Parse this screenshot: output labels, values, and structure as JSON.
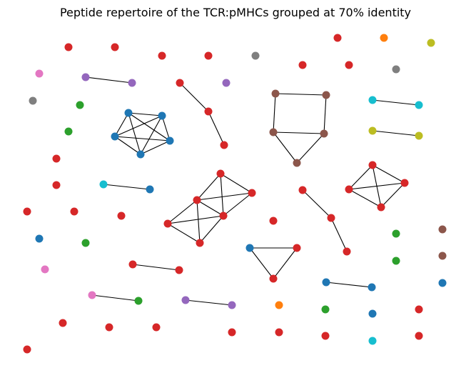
{
  "title": "Peptide repertoire of the TCR:pMHCs grouped at 70% identity",
  "chart_data": {
    "type": "network",
    "title": "Peptide repertoire of the TCR:pMHCs grouped at 70% identity",
    "nodes": [
      {
        "id": "n1",
        "color": "#d62728"
      },
      {
        "id": "n2",
        "color": "#d62728"
      },
      {
        "id": "n3",
        "color": "#d62728"
      },
      {
        "id": "n4",
        "color": "#d62728"
      },
      {
        "id": "n5",
        "color": "#7f7f7f"
      },
      {
        "id": "n6",
        "color": "#d62728"
      },
      {
        "id": "n7",
        "color": "#ff7f0e"
      },
      {
        "id": "n8",
        "color": "#bcbd22"
      },
      {
        "id": "n9",
        "color": "#d62728"
      },
      {
        "id": "n10",
        "color": "#d62728"
      },
      {
        "id": "n11",
        "color": "#7f7f7f"
      },
      {
        "id": "n12",
        "color": "#e377c2"
      },
      {
        "id": "n13",
        "color": "#9467bd"
      },
      {
        "id": "n14",
        "color": "#9467bd"
      },
      {
        "id": "n15",
        "color": "#d62728"
      },
      {
        "id": "n16",
        "color": "#9467bd"
      },
      {
        "id": "n17",
        "color": "#8c564b"
      },
      {
        "id": "n18",
        "color": "#8c564b"
      },
      {
        "id": "n19",
        "color": "#17becf"
      },
      {
        "id": "n20",
        "color": "#17becf"
      },
      {
        "id": "n21",
        "color": "#7f7f7f"
      },
      {
        "id": "n22",
        "color": "#2ca02c"
      },
      {
        "id": "n23",
        "color": "#1f77b4"
      },
      {
        "id": "n24",
        "color": "#1f77b4"
      },
      {
        "id": "n25",
        "color": "#d62728"
      },
      {
        "id": "n26",
        "color": "#2ca02c"
      },
      {
        "id": "n27",
        "color": "#1f77b4"
      },
      {
        "id": "n28",
        "color": "#1f77b4"
      },
      {
        "id": "n29",
        "color": "#1f77b4"
      },
      {
        "id": "n30",
        "color": "#8c564b"
      },
      {
        "id": "n31",
        "color": "#8c564b"
      },
      {
        "id": "n32",
        "color": "#bcbd22"
      },
      {
        "id": "n33",
        "color": "#bcbd22"
      },
      {
        "id": "n34",
        "color": "#d62728"
      },
      {
        "id": "n35",
        "color": "#d62728"
      },
      {
        "id": "n36",
        "color": "#8c564b"
      },
      {
        "id": "n37",
        "color": "#d62728"
      },
      {
        "id": "n38",
        "color": "#d62728"
      },
      {
        "id": "n39",
        "color": "#d62728"
      },
      {
        "id": "n40",
        "color": "#17becf"
      },
      {
        "id": "n41",
        "color": "#1f77b4"
      },
      {
        "id": "n42",
        "color": "#d62728"
      },
      {
        "id": "n43",
        "color": "#d62728"
      },
      {
        "id": "n44",
        "color": "#d62728"
      },
      {
        "id": "n45",
        "color": "#d62728"
      },
      {
        "id": "n46",
        "color": "#d62728"
      },
      {
        "id": "n47",
        "color": "#d62728"
      },
      {
        "id": "n48",
        "color": "#d62728"
      },
      {
        "id": "n49",
        "color": "#d62728"
      },
      {
        "id": "n50",
        "color": "#d62728"
      },
      {
        "id": "n51",
        "color": "#d62728"
      },
      {
        "id": "n52",
        "color": "#d62728"
      },
      {
        "id": "n53",
        "color": "#1f77b4"
      },
      {
        "id": "n54",
        "color": "#2ca02c"
      },
      {
        "id": "n55",
        "color": "#d62728"
      },
      {
        "id": "n56",
        "color": "#d62728"
      },
      {
        "id": "n57",
        "color": "#2ca02c"
      },
      {
        "id": "n58",
        "color": "#8c564b"
      },
      {
        "id": "n59",
        "color": "#1f77b4"
      },
      {
        "id": "n60",
        "color": "#d62728"
      },
      {
        "id": "n61",
        "color": "#d62728"
      },
      {
        "id": "n62",
        "color": "#d62728"
      },
      {
        "id": "n63",
        "color": "#2ca02c"
      },
      {
        "id": "n64",
        "color": "#8c564b"
      },
      {
        "id": "n65",
        "color": "#d62728"
      },
      {
        "id": "n66",
        "color": "#1f77b4"
      },
      {
        "id": "n67",
        "color": "#1f77b4"
      },
      {
        "id": "n68",
        "color": "#1f77b4"
      },
      {
        "id": "n69",
        "color": "#e377c2"
      },
      {
        "id": "n70",
        "color": "#e377c2"
      },
      {
        "id": "n71",
        "color": "#2ca02c"
      },
      {
        "id": "n72",
        "color": "#9467bd"
      },
      {
        "id": "n73",
        "color": "#9467bd"
      },
      {
        "id": "n74",
        "color": "#ff7f0e"
      },
      {
        "id": "n75",
        "color": "#2ca02c"
      },
      {
        "id": "n76",
        "color": "#1f77b4"
      },
      {
        "id": "n77",
        "color": "#d62728"
      },
      {
        "id": "n78",
        "color": "#d62728"
      },
      {
        "id": "n79",
        "color": "#d62728"
      },
      {
        "id": "n80",
        "color": "#d62728"
      },
      {
        "id": "n81",
        "color": "#d62728"
      },
      {
        "id": "n82",
        "color": "#d62728"
      },
      {
        "id": "n83",
        "color": "#d62728"
      },
      {
        "id": "n84",
        "color": "#17becf"
      },
      {
        "id": "n85",
        "color": "#d62728"
      },
      {
        "id": "n86",
        "color": "#d62728"
      }
    ],
    "edges": [
      [
        "n13",
        "n14"
      ],
      [
        "n15",
        "n25"
      ],
      [
        "n25",
        "n34"
      ],
      [
        "n17",
        "n18"
      ],
      [
        "n17",
        "n30"
      ],
      [
        "n18",
        "n31"
      ],
      [
        "n30",
        "n31"
      ],
      [
        "n30",
        "n36"
      ],
      [
        "n31",
        "n36"
      ],
      [
        "n19",
        "n20"
      ],
      [
        "n32",
        "n33"
      ],
      [
        "n23",
        "n24"
      ],
      [
        "n23",
        "n27"
      ],
      [
        "n23",
        "n28"
      ],
      [
        "n23",
        "n29"
      ],
      [
        "n24",
        "n27"
      ],
      [
        "n24",
        "n28"
      ],
      [
        "n24",
        "n29"
      ],
      [
        "n27",
        "n28"
      ],
      [
        "n27",
        "n29"
      ],
      [
        "n28",
        "n29"
      ],
      [
        "n40",
        "n41"
      ],
      [
        "n37",
        "n43"
      ],
      [
        "n37",
        "n44"
      ],
      [
        "n37",
        "n49"
      ],
      [
        "n43",
        "n44"
      ],
      [
        "n43",
        "n49"
      ],
      [
        "n43",
        "n52"
      ],
      [
        "n44",
        "n49"
      ],
      [
        "n49",
        "n52"
      ],
      [
        "n49",
        "n56"
      ],
      [
        "n52",
        "n56"
      ],
      [
        "n43",
        "n56"
      ],
      [
        "n38",
        "n39"
      ],
      [
        "n38",
        "n45"
      ],
      [
        "n38",
        "n46"
      ],
      [
        "n39",
        "n45"
      ],
      [
        "n39",
        "n46"
      ],
      [
        "n45",
        "n46"
      ],
      [
        "n42",
        "n50"
      ],
      [
        "n50",
        "n61"
      ],
      [
        "n59",
        "n60"
      ],
      [
        "n59",
        "n65"
      ],
      [
        "n60",
        "n65"
      ],
      [
        "n62",
        "n55"
      ],
      [
        "n66",
        "n67"
      ],
      [
        "n70",
        "n71"
      ],
      [
        "n72",
        "n73"
      ]
    ]
  }
}
